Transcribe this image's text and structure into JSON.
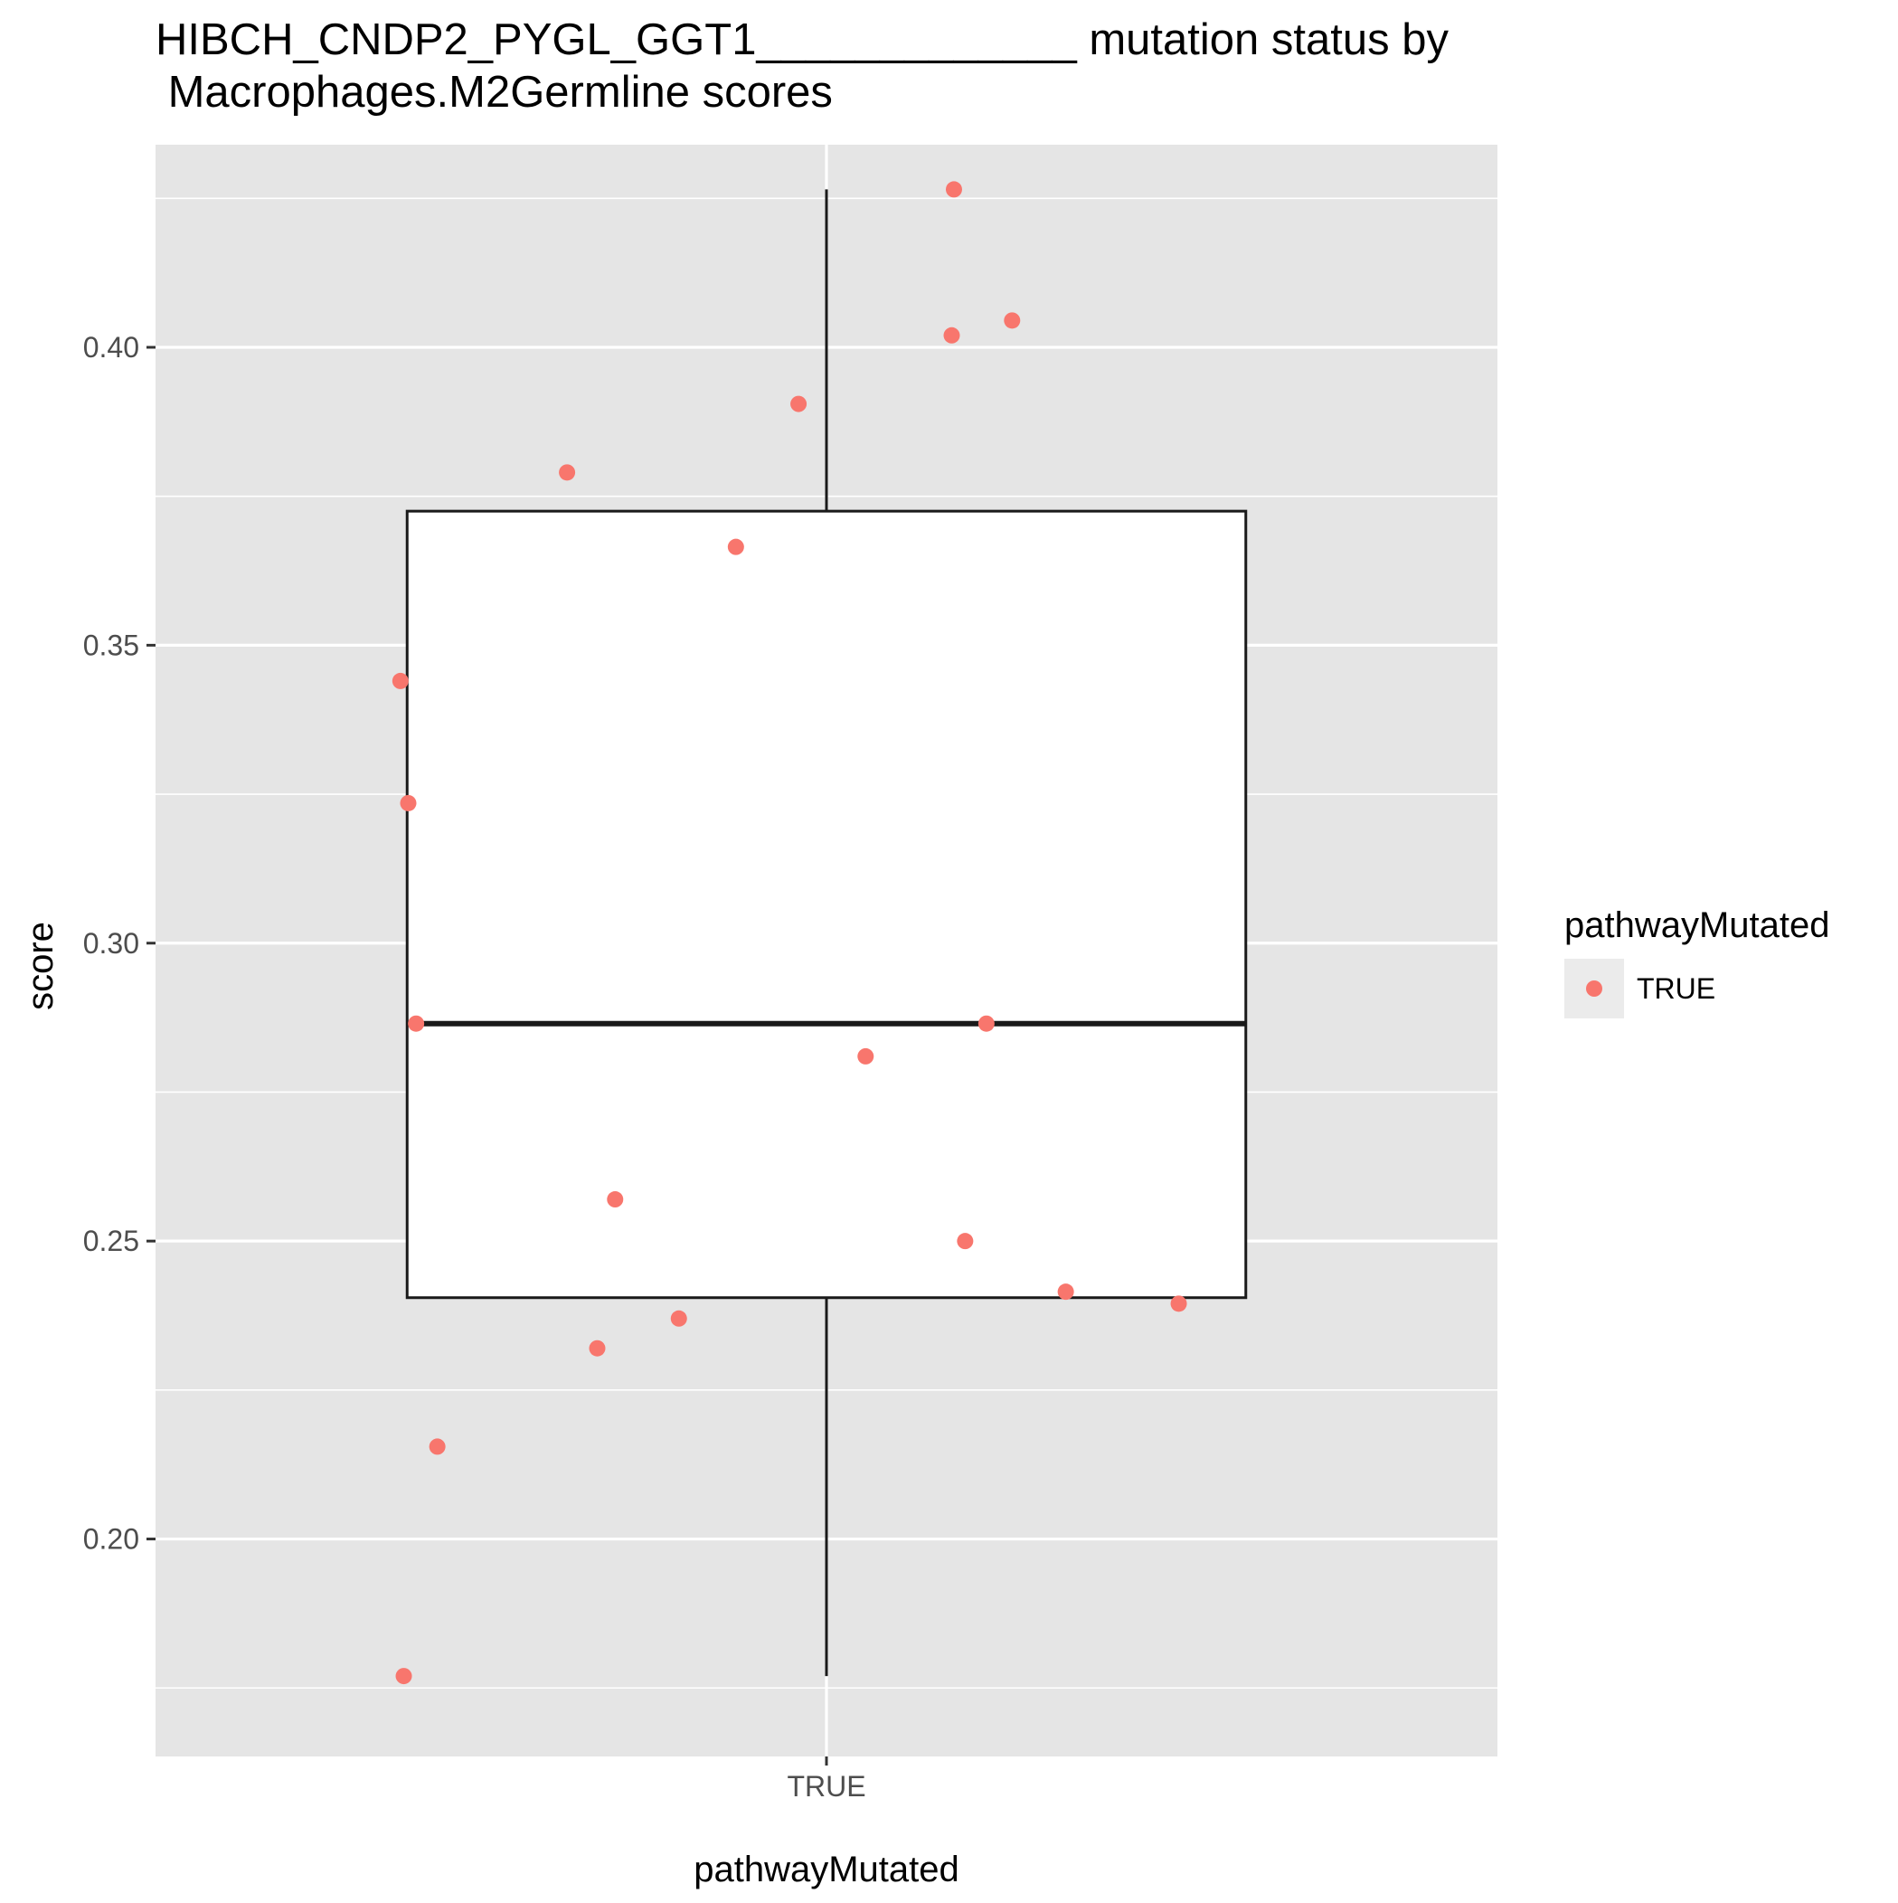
{
  "chart_data": {
    "type": "box",
    "title_lines": [
      "HIBCH_CNDP2_PYGL_GGT1_____________ mutation status by",
      " Macrophages.M2Germline scores"
    ],
    "xlabel": "pathwayMutated",
    "ylabel": "score",
    "categories": [
      "TRUE"
    ],
    "ylim": [
      0.1635,
      0.434
    ],
    "y_ticks": [
      0.2,
      0.25,
      0.3,
      0.35,
      0.4
    ],
    "y_tick_labels": [
      "0.20",
      "0.25",
      "0.30",
      "0.35",
      "0.40"
    ],
    "grid": true,
    "legend": {
      "title": "pathwayMutated",
      "entries": [
        {
          "label": "TRUE",
          "color": "#F8766D"
        }
      ],
      "placement": "right"
    },
    "box": {
      "category": "TRUE",
      "whisker_low": 0.177,
      "q1": 0.2405,
      "median": 0.2865,
      "q3": 0.3725,
      "whisker_high": 0.4265
    },
    "points": [
      {
        "x_jitter": -0.378,
        "y": 0.177
      },
      {
        "x_jitter": -0.348,
        "y": 0.2155
      },
      {
        "x_jitter": -0.205,
        "y": 0.232
      },
      {
        "x_jitter": -0.132,
        "y": 0.237
      },
      {
        "x_jitter": -0.189,
        "y": 0.257
      },
      {
        "x_jitter": -0.367,
        "y": 0.2865
      },
      {
        "x_jitter": -0.374,
        "y": 0.3235
      },
      {
        "x_jitter": -0.381,
        "y": 0.344
      },
      {
        "x_jitter": -0.081,
        "y": 0.3665
      },
      {
        "x_jitter": -0.232,
        "y": 0.379
      },
      {
        "x_jitter": -0.025,
        "y": 0.3905
      },
      {
        "x_jitter": 0.035,
        "y": 0.281
      },
      {
        "x_jitter": 0.143,
        "y": 0.2865
      },
      {
        "x_jitter": 0.124,
        "y": 0.25
      },
      {
        "x_jitter": 0.214,
        "y": 0.2415
      },
      {
        "x_jitter": 0.315,
        "y": 0.2395
      },
      {
        "x_jitter": 0.112,
        "y": 0.402
      },
      {
        "x_jitter": 0.166,
        "y": 0.4045
      },
      {
        "x_jitter": 0.114,
        "y": 0.4265
      }
    ],
    "colors": {
      "panel_background": "#E5E5E5",
      "grid_line": "#FFFFFF",
      "point": "#F8766D",
      "box_fill": "#FFFFFF",
      "box_line": "#1A1A1A",
      "legend_key_background": "#EBEBEB"
    }
  }
}
